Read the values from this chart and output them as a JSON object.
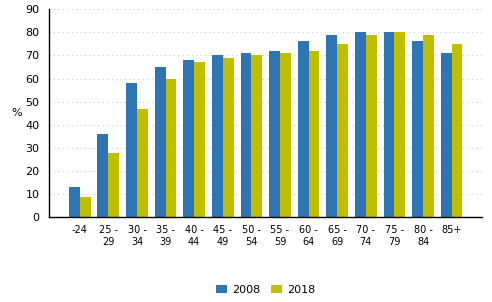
{
  "categories": [
    "-24",
    "25 -\n29",
    "30 -\n34",
    "35 -\n39",
    "40 -\n44",
    "45 -\n49",
    "50 -\n54",
    "55 -\n59",
    "60 -\n64",
    "65 -\n69",
    "70 -\n74",
    "75 -\n79",
    "80 -\n84",
    "85+"
  ],
  "values_2008": [
    13,
    36,
    58,
    65,
    68,
    70,
    71,
    72,
    76,
    79,
    80,
    80,
    76,
    71
  ],
  "values_2018": [
    9,
    28,
    47,
    60,
    67,
    69,
    70,
    71,
    72,
    75,
    79,
    80,
    79,
    75
  ],
  "color_2008": "#2E75B6",
  "color_2018": "#BFBF00",
  "ylabel": "%",
  "ylim": [
    0,
    90
  ],
  "yticks": [
    0,
    10,
    20,
    30,
    40,
    50,
    60,
    70,
    80,
    90
  ],
  "legend_labels": [
    "2008",
    "2018"
  ],
  "bar_width": 0.38,
  "grid_color": "#CCCCCC",
  "spine_color": "#000000"
}
